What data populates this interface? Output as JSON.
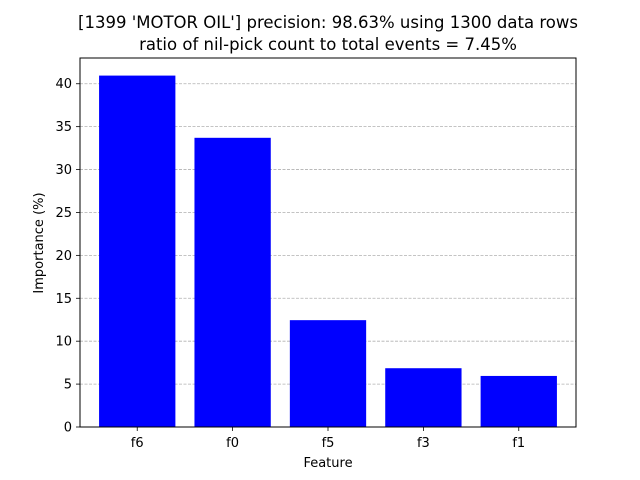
{
  "chart_data": {
    "type": "bar",
    "title_line1": "[1399 'MOTOR OIL'] precision: 98.63% using 1300 data rows",
    "title_line2": "ratio of nil-pick count to total events = 7.45%",
    "xlabel": "Feature",
    "ylabel": "Importance (%)",
    "categories": [
      "f6",
      "f0",
      "f5",
      "f3",
      "f1"
    ],
    "values": [
      40.95,
      33.7,
      12.45,
      6.85,
      5.95
    ],
    "ylim": [
      0,
      43.0
    ],
    "yticks": [
      0,
      5,
      10,
      15,
      20,
      25,
      30,
      35,
      40
    ],
    "ytick_labels": [
      "0",
      "5",
      "10",
      "15",
      "20",
      "25",
      "30",
      "35",
      "40"
    ],
    "grid": "y-dashed",
    "legend": "none",
    "bar_color": "#0000ff",
    "grid_color": "#b0b0b0"
  }
}
